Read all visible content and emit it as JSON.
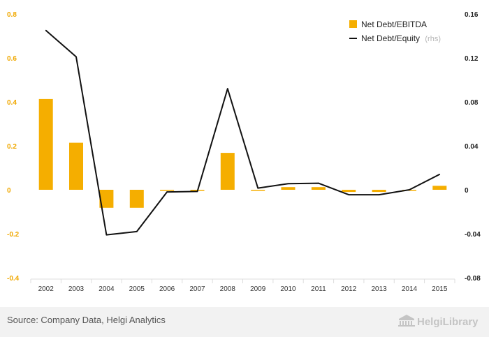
{
  "colors": {
    "bar": "#f5ae00",
    "line": "#111111",
    "left_axis": "#f0a800",
    "right_axis": "#222222",
    "footer_bg": "#f2f2f2",
    "grid": "#dddddd"
  },
  "chart_data": {
    "type": "bar",
    "categories": [
      "2002",
      "2003",
      "2004",
      "2005",
      "2006",
      "2007",
      "2008",
      "2009",
      "2010",
      "2011",
      "2012",
      "2013",
      "2014",
      "2015"
    ],
    "series": [
      {
        "name": "Net Debt/EBITDA",
        "type": "bar",
        "axis": "left",
        "values": [
          0.413,
          0.214,
          -0.082,
          -0.082,
          -0.004,
          -0.004,
          0.168,
          0,
          0.012,
          0.012,
          -0.01,
          -0.01,
          0,
          0.018
        ]
      },
      {
        "name": "Net Debt/Equity",
        "type": "line",
        "axis": "right",
        "values": [
          0.145,
          0.121,
          -0.041,
          -0.038,
          -0.002,
          -0.0015,
          0.092,
          0.0015,
          0.0055,
          0.006,
          -0.0045,
          -0.0045,
          0,
          0.014
        ]
      }
    ],
    "ylim": [
      -0.4,
      0.8
    ],
    "y2lim": [
      -0.08,
      0.16
    ],
    "yticks": [
      "0.8",
      "0.6",
      "0.4",
      "0.2",
      "0",
      "-0.2",
      "-0.4"
    ],
    "y2ticks": [
      "0.16",
      "0.12",
      "0.08",
      "0.04",
      "0",
      "-0.04",
      "-0.08"
    ],
    "legend": {
      "items": [
        "Net Debt/EBITDA",
        "Net Debt/Equity"
      ],
      "rhs_tag": "(rhs)",
      "placement": "top-right"
    },
    "grid": false
  },
  "footer": {
    "source": "Source: Company Data, Helgi Analytics",
    "brand": "HelgiLibrary"
  }
}
